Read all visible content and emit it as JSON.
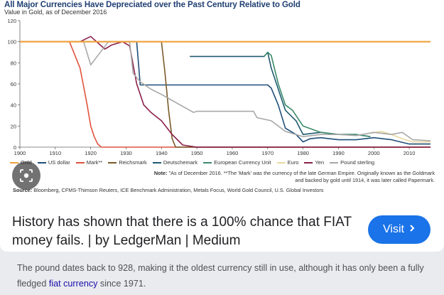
{
  "result_card": {
    "chart_title": "All Major Currencies Have Depreciated over the Past Century Relative to Gold",
    "chart_subtitle": "Value in Gold, as of December 2016",
    "legend": [
      {
        "label": "Gold",
        "color": "#f0a23a"
      },
      {
        "label": "US dollar",
        "color": "#1f4e79"
      },
      {
        "label": "Mark**",
        "color": "#e0533c"
      },
      {
        "label": "Reichsmark",
        "color": "#7a5a2a"
      },
      {
        "label": "Deutschemark",
        "color": "#1f5a70"
      },
      {
        "label": "European Currency Unit",
        "color": "#3b8a6a"
      },
      {
        "label": "Euro",
        "color": "#e8d9a0"
      },
      {
        "label": "Yen",
        "color": "#8a1f4a"
      },
      {
        "label": "Pound sterling",
        "color": "#a8a8a8"
      }
    ],
    "note_bold": "Note:",
    "note_text": "\"As of December 2016. **The 'Mark' was the currency of the late German Empire. Originally known as the Goldmark and backed by gold until 1914, it was later called Papermark.",
    "source_bold": "Source:",
    "source_text": "Bloomberg, CFMS-Thimson Reuters, ICE Benchmark Administration, Metals Focus, World Gold Council, U.S. Global Investors",
    "caption": "History has shown that there is a 100% chance that FIAT money fails. | by LedgerMan | Medium",
    "visit_label": "Visit",
    "lens_icon": "lens-search-icon"
  },
  "snippet": {
    "text_before": "The pound dates back to 928, making it the oldest currency still in use, although it has only been a fully fledged ",
    "link_text": "fiat currency",
    "text_after": " since 1971."
  },
  "chart_data": {
    "type": "line",
    "title": "All Major Currencies Have Depreciated over the Past Century Relative to Gold",
    "subtitle": "Value in Gold, as of December 2016",
    "xlim": [
      1900,
      2016
    ],
    "ylim": [
      0,
      120
    ],
    "xticks": [
      1900,
      1910,
      1920,
      1930,
      1940,
      1950,
      1960,
      1970,
      1980,
      1990,
      2000,
      2010
    ],
    "yticks": [
      0,
      20,
      40,
      60,
      80,
      100,
      120
    ],
    "grid": false,
    "legend_position": "bottom",
    "series": [
      {
        "name": "Gold",
        "color": "#f0a23a",
        "points": [
          [
            1900,
            100
          ],
          [
            2016,
            100
          ]
        ]
      },
      {
        "name": "US dollar",
        "color": "#1f4e79",
        "points": [
          [
            1900,
            100
          ],
          [
            1933,
            100
          ],
          [
            1934,
            59
          ],
          [
            1970,
            59
          ],
          [
            1971,
            56
          ],
          [
            1973,
            40
          ],
          [
            1975,
            18
          ],
          [
            1978,
            12
          ],
          [
            1980,
            5
          ],
          [
            1982,
            8
          ],
          [
            1985,
            9
          ],
          [
            1990,
            7
          ],
          [
            1995,
            7
          ],
          [
            2000,
            9
          ],
          [
            2005,
            7
          ],
          [
            2010,
            3
          ],
          [
            2016,
            3
          ]
        ]
      },
      {
        "name": "Mark**",
        "color": "#e0533c",
        "points": [
          [
            1900,
            100
          ],
          [
            1914,
            100
          ],
          [
            1917,
            75
          ],
          [
            1919,
            40
          ],
          [
            1920,
            20
          ],
          [
            1921,
            10
          ],
          [
            1922,
            3
          ],
          [
            1923,
            0
          ],
          [
            2016,
            0
          ]
        ]
      },
      {
        "name": "Reichsmark",
        "color": "#7a5a2a",
        "points": [
          [
            1924,
            100
          ],
          [
            1939,
            100
          ],
          [
            1940,
            100
          ],
          [
            1941,
            70
          ],
          [
            1942,
            35
          ],
          [
            1943,
            8
          ],
          [
            1944,
            0
          ],
          [
            2016,
            0
          ]
        ]
      },
      {
        "name": "Deutschemark",
        "color": "#1f5a70",
        "points": [
          [
            1948,
            86
          ],
          [
            1969,
            86
          ],
          [
            1970,
            90
          ],
          [
            1971,
            75
          ],
          [
            1973,
            55
          ],
          [
            1975,
            35
          ],
          [
            1978,
            25
          ],
          [
            1980,
            12
          ],
          [
            1985,
            14
          ],
          [
            1990,
            12
          ],
          [
            1995,
            12
          ],
          [
            1999,
            10
          ]
        ]
      },
      {
        "name": "European Currency Unit",
        "color": "#3b8a6a",
        "points": [
          [
            1969,
            86
          ],
          [
            1970,
            90
          ],
          [
            1971,
            87
          ],
          [
            1973,
            60
          ],
          [
            1975,
            40
          ],
          [
            1977,
            35
          ],
          [
            1980,
            20
          ],
          [
            1985,
            14
          ],
          [
            1990,
            12
          ],
          [
            1995,
            12
          ],
          [
            1999,
            10
          ]
        ]
      },
      {
        "name": "Euro",
        "color": "#e8d9a0",
        "points": [
          [
            1999,
            13
          ],
          [
            2002,
            15
          ],
          [
            2005,
            12
          ],
          [
            2008,
            8
          ],
          [
            2011,
            5
          ],
          [
            2016,
            5
          ]
        ]
      },
      {
        "name": "Yen",
        "color": "#8a1f4a",
        "points": [
          [
            1900,
            100
          ],
          [
            1917,
            100
          ],
          [
            1920,
            105
          ],
          [
            1924,
            93
          ],
          [
            1926,
            97
          ],
          [
            1929,
            100
          ],
          [
            1931,
            96
          ],
          [
            1933,
            60
          ],
          [
            1935,
            40
          ],
          [
            1937,
            33
          ],
          [
            1940,
            25
          ],
          [
            1943,
            12
          ],
          [
            1946,
            2
          ],
          [
            1950,
            0
          ],
          [
            2016,
            0
          ]
        ]
      },
      {
        "name": "Pound sterling",
        "color": "#a8a8a8",
        "points": [
          [
            1900,
            100
          ],
          [
            1918,
            100
          ],
          [
            1920,
            78
          ],
          [
            1925,
            100
          ],
          [
            1931,
            100
          ],
          [
            1932,
            70
          ],
          [
            1934,
            62
          ],
          [
            1937,
            55
          ],
          [
            1940,
            50
          ],
          [
            1949,
            33
          ],
          [
            1950,
            34
          ],
          [
            1966,
            34
          ],
          [
            1967,
            28
          ],
          [
            1971,
            25
          ],
          [
            1975,
            15
          ],
          [
            1980,
            10
          ],
          [
            1985,
            12
          ],
          [
            1990,
            12
          ],
          [
            1995,
            11
          ],
          [
            2000,
            14
          ],
          [
            2005,
            12
          ],
          [
            2008,
            14
          ],
          [
            2011,
            7
          ],
          [
            2016,
            6
          ]
        ]
      }
    ]
  }
}
